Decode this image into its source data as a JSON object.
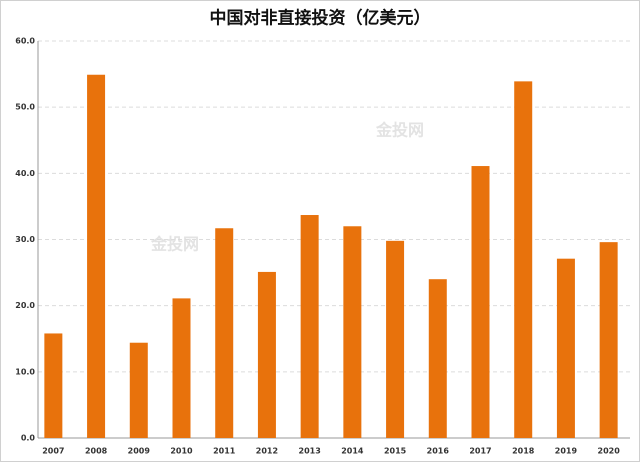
{
  "chart_data": {
    "type": "bar",
    "title": "中国对非直接投资（亿美元）",
    "watermark": "金投网",
    "categories": [
      "2007",
      "2008",
      "2009",
      "2010",
      "2011",
      "2012",
      "2013",
      "2014",
      "2015",
      "2016",
      "2017",
      "2018",
      "2019",
      "2020"
    ],
    "values": [
      15.8,
      54.9,
      14.4,
      21.1,
      31.7,
      25.1,
      33.7,
      32.0,
      29.8,
      24.0,
      41.1,
      53.9,
      27.1,
      29.6
    ],
    "color": "#e8720c",
    "ylim": [
      0,
      60
    ],
    "yticks": [
      {
        "value": 0,
        "label": "0.0"
      },
      {
        "value": 10,
        "label": "10.0"
      },
      {
        "value": 20,
        "label": "20.0"
      },
      {
        "value": 30,
        "label": "30.0"
      },
      {
        "value": 40,
        "label": "40.0"
      },
      {
        "value": 50,
        "label": "50.0"
      },
      {
        "value": 60,
        "label": "60.0"
      }
    ],
    "grid": true
  }
}
